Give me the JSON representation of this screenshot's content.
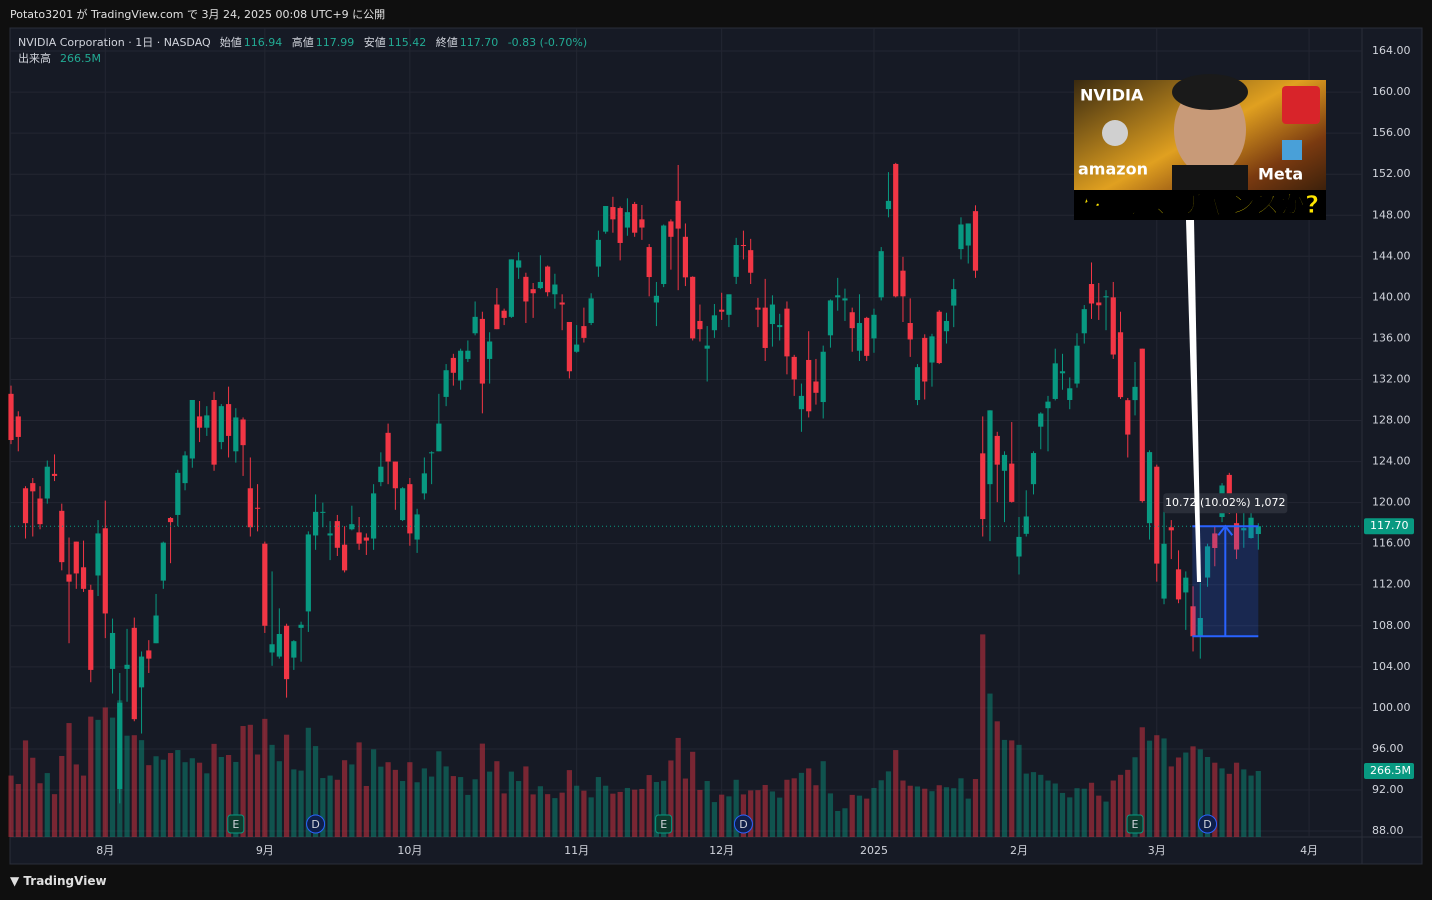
{
  "header": {
    "published": "Potato3201 が TradingView.com で 3月 24, 2025 00:08 UTC+9 に公開"
  },
  "footer": {
    "brand": "TradingView"
  },
  "chart_data": {
    "type": "candlestick",
    "title": "NVIDIA Corporation · 1日 · NASDAQ",
    "legend": {
      "open_label": "始値",
      "open": "116.94",
      "high_label": "高値",
      "high": "117.99",
      "low_label": "安値",
      "low": "115.42",
      "close_label": "終値",
      "close": "117.70",
      "change": "-0.83 (-0.70%)",
      "volume_label": "出来高",
      "volume": "266.5M"
    },
    "price_tag": "117.70",
    "volume_tag": "266.5M",
    "up_color": "#089981",
    "down_color": "#f23645",
    "grid": true,
    "candles": [
      [
        130.6,
        131.4,
        125.7,
        126.1
      ],
      [
        128.4,
        128.9,
        125.0,
        126.4
      ],
      [
        121.4,
        121.6,
        116.5,
        118.0
      ],
      [
        121.9,
        122.4,
        116.7,
        121.1
      ],
      [
        120.4,
        121.6,
        117.4,
        117.9
      ],
      [
        120.4,
        124.1,
        119.9,
        123.5
      ],
      [
        122.8,
        124.7,
        122.1,
        122.6
      ],
      [
        119.2,
        119.9,
        113.4,
        114.2
      ],
      [
        113.0,
        116.6,
        106.3,
        112.3
      ],
      [
        116.2,
        116.2,
        111.6,
        113.1
      ],
      [
        113.7,
        116.3,
        111.3,
        111.6
      ],
      [
        111.5,
        112.0,
        102.5,
        103.7
      ],
      [
        112.9,
        118.3,
        110.9,
        117.0
      ],
      [
        117.5,
        120.2,
        106.8,
        109.2
      ],
      [
        103.8,
        108.7,
        101.4,
        107.3
      ],
      [
        92.1,
        103.4,
        90.7,
        100.5
      ],
      [
        103.8,
        107.7,
        100.6,
        104.2
      ],
      [
        107.8,
        108.8,
        98.7,
        98.9
      ],
      [
        102.0,
        105.5,
        97.5,
        105.0
      ],
      [
        105.6,
        106.6,
        103.4,
        104.8
      ],
      [
        106.3,
        111.1,
        106.3,
        109.0
      ],
      [
        112.4,
        116.2,
        111.6,
        116.1
      ],
      [
        118.5,
        118.6,
        114.1,
        118.1
      ],
      [
        118.8,
        123.2,
        117.7,
        122.9
      ],
      [
        121.9,
        125.0,
        121.2,
        124.6
      ],
      [
        124.3,
        130.0,
        123.4,
        130.0
      ],
      [
        128.4,
        129.9,
        125.9,
        127.3
      ],
      [
        127.3,
        129.4,
        126.5,
        128.5
      ],
      [
        130.0,
        130.8,
        123.1,
        123.7
      ],
      [
        125.9,
        129.6,
        125.2,
        129.4
      ],
      [
        129.6,
        131.3,
        124.4,
        126.5
      ],
      [
        125.0,
        129.2,
        123.9,
        128.3
      ],
      [
        128.1,
        128.3,
        122.6,
        125.6
      ],
      [
        121.4,
        124.4,
        116.7,
        117.6
      ],
      [
        119.5,
        121.8,
        117.2,
        119.4
      ],
      [
        116.0,
        116.2,
        107.3,
        108.0
      ],
      [
        105.4,
        113.3,
        104.1,
        106.2
      ],
      [
        105.0,
        109.7,
        104.8,
        107.2
      ],
      [
        108.0,
        108.2,
        101.0,
        102.8
      ],
      [
        104.9,
        106.6,
        103.7,
        106.5
      ],
      [
        107.8,
        108.4,
        104.5,
        108.1
      ],
      [
        109.4,
        117.2,
        107.4,
        116.9
      ],
      [
        116.8,
        120.8,
        115.4,
        119.1
      ],
      [
        119.1,
        120.0,
        117.6,
        119.1
      ],
      [
        116.8,
        118.2,
        114.4,
        117.0
      ],
      [
        118.2,
        118.8,
        114.8,
        115.6
      ],
      [
        115.9,
        117.7,
        113.2,
        113.4
      ],
      [
        117.4,
        119.7,
        117.3,
        117.9
      ],
      [
        117.1,
        118.6,
        115.4,
        116.0
      ],
      [
        116.6,
        117.0,
        114.9,
        116.3
      ],
      [
        116.5,
        121.8,
        115.4,
        120.9
      ],
      [
        122.0,
        124.9,
        121.6,
        123.5
      ],
      [
        126.8,
        127.7,
        121.8,
        124.0
      ],
      [
        124.0,
        124.0,
        119.3,
        121.4
      ],
      [
        118.3,
        121.5,
        118.2,
        121.4
      ],
      [
        121.8,
        122.4,
        115.8,
        117.0
      ],
      [
        116.4,
        119.4,
        115.1,
        118.85
      ],
      [
        120.9,
        124.4,
        120.3,
        122.85
      ],
      [
        124.9,
        125.0,
        121.8,
        124.9
      ],
      [
        125.0,
        130.6,
        125.0,
        127.7
      ],
      [
        130.3,
        133.5,
        129.4,
        132.9
      ],
      [
        134.1,
        134.5,
        131.4,
        132.65
      ],
      [
        131.9,
        135.0,
        131.0,
        134.8
      ],
      [
        134.0,
        135.8,
        133.7,
        134.8
      ],
      [
        136.5,
        139.6,
        136.3,
        138.1
      ],
      [
        137.9,
        138.6,
        128.7,
        131.6
      ],
      [
        134.0,
        136.6,
        131.6,
        135.7
      ],
      [
        139.3,
        140.9,
        136.9,
        136.9
      ],
      [
        138.7,
        138.9,
        137.3,
        138.0
      ],
      [
        138.1,
        143.7,
        138.0,
        143.7
      ],
      [
        142.9,
        144.4,
        141.8,
        143.6
      ],
      [
        142.0,
        142.4,
        137.5,
        139.6
      ],
      [
        140.8,
        141.4,
        138.0,
        140.4
      ],
      [
        140.9,
        144.1,
        140.8,
        141.5
      ],
      [
        143.0,
        143.1,
        140.1,
        140.5
      ],
      [
        140.3,
        142.3,
        138.9,
        141.25
      ],
      [
        139.5,
        140.3,
        136.8,
        139.3
      ],
      [
        137.6,
        137.6,
        132.1,
        132.8
      ],
      [
        134.7,
        137.3,
        134.6,
        135.4
      ],
      [
        137.2,
        139.0,
        135.6,
        136.05
      ],
      [
        137.5,
        140.4,
        137.3,
        139.9
      ],
      [
        143.0,
        146.5,
        142.0,
        145.6
      ],
      [
        146.4,
        148.9,
        146.2,
        148.9
      ],
      [
        148.8,
        149.8,
        146.3,
        147.6
      ],
      [
        148.7,
        148.85,
        143.6,
        145.3
      ],
      [
        146.8,
        149.65,
        146.0,
        148.3
      ],
      [
        149.1,
        149.3,
        145.9,
        146.3
      ],
      [
        147.6,
        149.0,
        145.6,
        146.8
      ],
      [
        144.9,
        145.2,
        140.1,
        141.98
      ],
      [
        139.5,
        141.5,
        137.2,
        140.15
      ],
      [
        141.3,
        147.1,
        141.0,
        147.0
      ],
      [
        147.4,
        147.6,
        142.7,
        145.9
      ],
      [
        149.4,
        152.9,
        140.7,
        146.7
      ],
      [
        145.9,
        147.2,
        141.1,
        141.95
      ],
      [
        142.0,
        142.05,
        135.8,
        136.0
      ],
      [
        137.7,
        139.3,
        135.7,
        136.9
      ],
      [
        135.0,
        137.2,
        131.8,
        135.3
      ],
      [
        136.8,
        139.35,
        136.05,
        138.25
      ],
      [
        138.8,
        140.45,
        137.8,
        138.6
      ],
      [
        138.3,
        140.0,
        137.1,
        140.3
      ],
      [
        142.0,
        145.8,
        141.3,
        145.1
      ],
      [
        145.1,
        146.5,
        143.7,
        145.06
      ],
      [
        144.6,
        145.7,
        141.3,
        142.4
      ],
      [
        139.0,
        139.95,
        137.1,
        138.8
      ],
      [
        139.0,
        141.8,
        133.8,
        135.07
      ],
      [
        137.4,
        140.2,
        135.2,
        139.3
      ],
      [
        137.1,
        138.4,
        135.8,
        137.3
      ],
      [
        138.9,
        139.6,
        132.5,
        134.25
      ],
      [
        134.2,
        134.4,
        130.4,
        132.0
      ],
      [
        129.1,
        131.6,
        126.9,
        130.4
      ],
      [
        133.9,
        136.7,
        128.3,
        128.9
      ],
      [
        131.8,
        134.0,
        129.55,
        130.7
      ],
      [
        129.8,
        135.3,
        128.2,
        134.7
      ],
      [
        136.3,
        139.8,
        135.1,
        139.7
      ],
      [
        140.0,
        141.9,
        138.7,
        140.2
      ],
      [
        139.7,
        140.85,
        137.7,
        139.9
      ],
      [
        138.55,
        139.0,
        134.7,
        137.0
      ],
      [
        134.8,
        140.3,
        133.8,
        137.5
      ],
      [
        138.0,
        138.1,
        133.8,
        134.3
      ],
      [
        136.0,
        138.9,
        134.6,
        138.3
      ],
      [
        140.0,
        144.9,
        139.7,
        144.5
      ],
      [
        148.6,
        152.2,
        147.8,
        149.4
      ],
      [
        153.0,
        153.1,
        140.0,
        140.1
      ],
      [
        142.6,
        143.95,
        137.6,
        140.1
      ],
      [
        137.5,
        139.9,
        134.2,
        135.9
      ],
      [
        130.0,
        133.5,
        129.5,
        133.2
      ],
      [
        136.05,
        136.4,
        130.05,
        131.8
      ],
      [
        133.65,
        136.45,
        131.3,
        136.2
      ],
      [
        138.6,
        138.75,
        133.5,
        133.6
      ],
      [
        136.7,
        138.5,
        135.5,
        137.7
      ],
      [
        139.2,
        141.8,
        137.1,
        140.8
      ],
      [
        144.7,
        147.8,
        143.7,
        147.1
      ],
      [
        145.05,
        147.2,
        143.3,
        147.2
      ],
      [
        148.4,
        148.97,
        141.9,
        142.6
      ],
      [
        124.8,
        128.4,
        116.7,
        118.4
      ],
      [
        121.8,
        129.0,
        116.25,
        128.99
      ],
      [
        126.5,
        126.9,
        120.05,
        123.7
      ],
      [
        123.1,
        125.0,
        118.1,
        124.65
      ],
      [
        123.8,
        127.85,
        120.0,
        120.07
      ],
      [
        114.75,
        118.6,
        113.0,
        116.66
      ],
      [
        116.96,
        121.2,
        116.7,
        118.65
      ],
      [
        121.8,
        125.0,
        120.8,
        124.83
      ],
      [
        127.4,
        128.8,
        125.2,
        128.68
      ],
      [
        129.2,
        130.4,
        125.0,
        129.84
      ],
      [
        130.1,
        135.0,
        129.96,
        133.57
      ],
      [
        132.6,
        134.5,
        131.0,
        132.8
      ],
      [
        130.0,
        132.2,
        129.1,
        131.14
      ],
      [
        131.6,
        136.5,
        131.2,
        135.29
      ],
      [
        136.5,
        139.25,
        135.5,
        138.85
      ],
      [
        141.3,
        143.4,
        137.9,
        139.4
      ],
      [
        139.5,
        141.4,
        137.8,
        139.23
      ],
      [
        140.0,
        140.7,
        136.8,
        140.11
      ],
      [
        140.0,
        141.5,
        134.0,
        134.43
      ],
      [
        136.6,
        138.6,
        130.1,
        130.28
      ],
      [
        129.98,
        130.2,
        124.4,
        126.63
      ],
      [
        129.99,
        133.7,
        128.5,
        131.28
      ],
      [
        135.0,
        135.0,
        120.0,
        120.15
      ],
      [
        118.0,
        125.1,
        116.4,
        124.92
      ],
      [
        123.5,
        123.7,
        112.3,
        114.06
      ],
      [
        110.65,
        119.3,
        110.1,
        115.99
      ],
      [
        117.6,
        118.3,
        114.5,
        117.3
      ],
      [
        113.5,
        115.35,
        110.2,
        110.57
      ],
      [
        111.25,
        113.3,
        107.6,
        112.69
      ],
      [
        109.9,
        111.85,
        105.5,
        106.98
      ],
      [
        106.99,
        112.2,
        104.8,
        108.76
      ],
      [
        112.7,
        116.0,
        111.8,
        115.74
      ],
      [
        117.0,
        117.76,
        113.8,
        115.58
      ],
      [
        118.6,
        121.9,
        118.1,
        121.67
      ],
      [
        122.7,
        122.9,
        118.9,
        119.53
      ],
      [
        118.0,
        119.0,
        114.5,
        115.43
      ],
      [
        117.3,
        120.45,
        115.6,
        117.52
      ],
      [
        116.55,
        120.0,
        116.5,
        118.53
      ],
      [
        116.94,
        117.99,
        115.42,
        117.7
      ]
    ],
    "volumes": [
      248,
      214,
      390,
      320,
      217,
      258,
      173,
      327,
      460,
      293,
      248,
      486,
      473,
      523,
      482,
      552,
      409,
      411,
      391,
      290,
      326,
      312,
      339,
      351,
      302,
      318,
      300,
      257,
      376,
      323,
      331,
      303,
      448,
      453,
      333,
      477,
      372,
      306,
      413,
      273,
      268,
      441,
      367,
      238,
      248,
      231,
      310,
      293,
      382,
      206,
      354,
      284,
      302,
      271,
      226,
      302,
      221,
      277,
      244,
      346,
      285,
      246,
      242,
      170,
      233,
      377,
      264,
      306,
      176,
      264,
      226,
      285,
      172,
      205,
      173,
      157,
      179,
      270,
      207,
      187,
      160,
      242,
      207,
      175,
      182,
      198,
      191,
      194,
      250,
      222,
      227,
      309,
      400,
      236,
      344,
      190,
      226,
      141,
      171,
      164,
      231,
      172,
      188,
      189,
      210,
      184,
      159,
      231,
      237,
      259,
      277,
      209,
      306,
      176,
      105,
      116,
      170,
      167,
      155,
      198,
      229,
      265,
      351,
      228,
      207,
      204,
      195,
      185,
      209,
      201,
      197,
      237,
      155,
      234,
      818,
      579,
      467,
      392,
      390,
      372,
      256,
      262,
      251,
      228,
      216,
      178,
      160,
      197,
      195,
      219,
      167,
      143,
      228,
      251,
      271,
      322,
      443,
      389,
      411,
      398,
      285,
      321,
      341,
      366,
      354,
      323,
      300,
      277,
      255,
      300,
      273,
      248,
      266.5
    ],
    "xlim": [
      -0.14,
      186.3
    ],
    "xticks": [
      {
        "value": 13,
        "label": "8月"
      },
      {
        "value": 35,
        "label": "9月"
      },
      {
        "value": 55,
        "label": "10月"
      },
      {
        "value": 78,
        "label": "11月"
      },
      {
        "value": 98,
        "label": "12月"
      },
      {
        "value": 119,
        "label": "2025"
      },
      {
        "value": 139,
        "label": "2月"
      },
      {
        "value": 158,
        "label": "3月"
      },
      {
        "value": 179,
        "label": "4月"
      }
    ],
    "ylim": [
      87.42,
      166.05
    ],
    "yticks": [
      {
        "value": 88,
        "label": "88.00"
      },
      {
        "value": 92,
        "label": "92.00"
      },
      {
        "value": 96,
        "label": "96.00"
      },
      {
        "value": 100,
        "label": "100.00"
      },
      {
        "value": 104,
        "label": "104.00"
      },
      {
        "value": 108,
        "label": "108.00"
      },
      {
        "value": 112,
        "label": "112.00"
      },
      {
        "value": 116,
        "label": "116.00"
      },
      {
        "value": 120,
        "label": "120.00"
      },
      {
        "value": 124,
        "label": "124.00"
      },
      {
        "value": 128,
        "label": "128.00"
      },
      {
        "value": 132,
        "label": "132.00"
      },
      {
        "value": 136,
        "label": "136.00"
      },
      {
        "value": 140,
        "label": "140.00"
      },
      {
        "value": 144,
        "label": "144.00"
      },
      {
        "value": 148,
        "label": "148.00"
      },
      {
        "value": 152,
        "label": "152.00"
      },
      {
        "value": 156,
        "label": "156.00"
      },
      {
        "value": 160,
        "label": "160.00"
      },
      {
        "value": 164,
        "label": "164.00"
      }
    ],
    "y2lim": [
      0,
      3258
    ],
    "events": [
      {
        "x": 31,
        "label": "E"
      },
      {
        "x": 42,
        "label": "D"
      },
      {
        "x": 90,
        "label": "E"
      },
      {
        "x": 101,
        "label": "D"
      },
      {
        "x": 155,
        "label": "E"
      },
      {
        "x": 165,
        "label": "D"
      }
    ],
    "measure": {
      "label": "10.72 (10.02%) 1,072",
      "x": [
        162.9,
        172
      ],
      "y": [
        106.98,
        117.7
      ]
    },
    "thumbnail": {
      "caption": "株暴落、チャンスか?",
      "logos": [
        "NVIDIA",
        "amazon",
        "Meta"
      ]
    }
  }
}
